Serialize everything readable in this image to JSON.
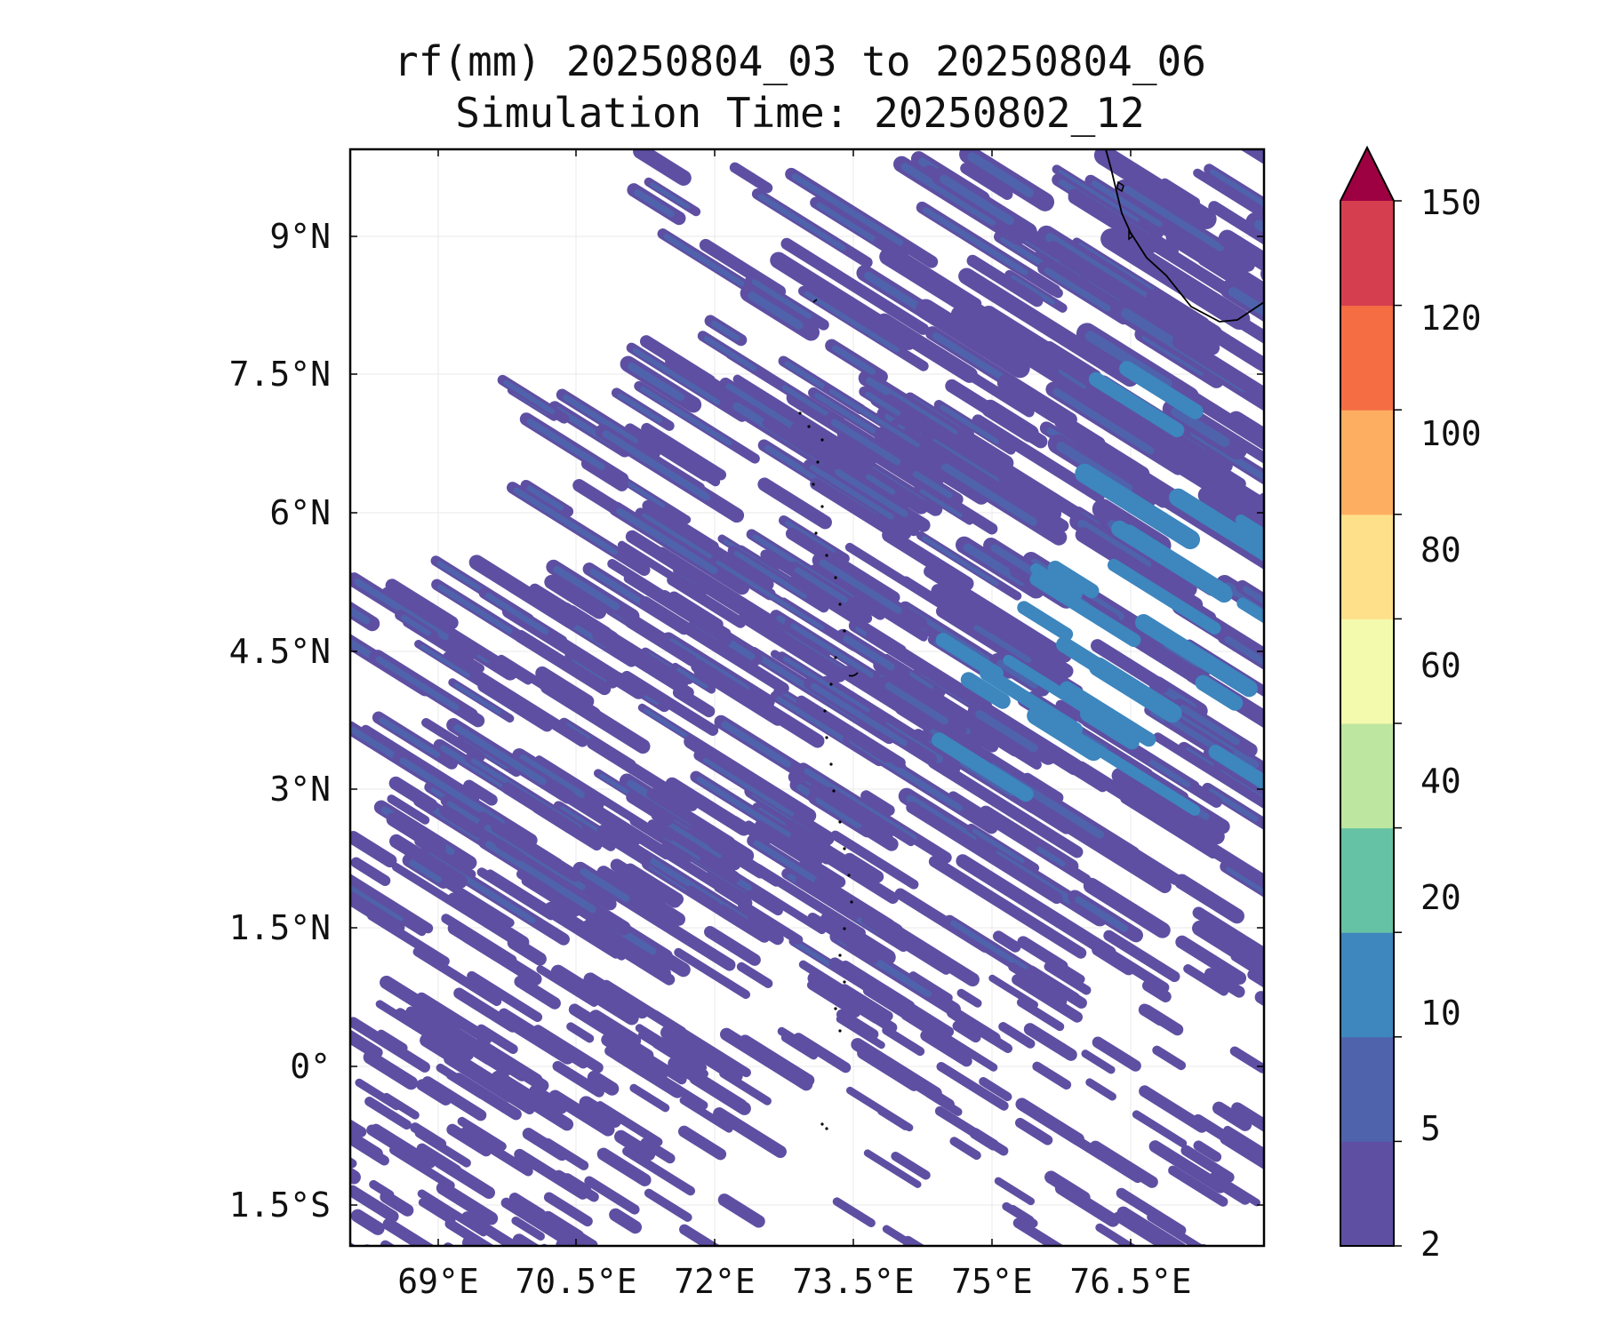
{
  "title": {
    "line1": "rf(mm) 20250804_03 to 20250804_06",
    "line2": "Simulation Time: 20250802_12"
  },
  "map": {
    "lat_labels": [
      "9°N",
      "7.5°N",
      "6°N",
      "4.5°N",
      "3°N",
      "1.5°N",
      "0°",
      "1.5°S"
    ],
    "lon_labels": [
      "69°E",
      "70.5°E",
      "72°E",
      "73.5°E",
      "75°E",
      "76.5°E"
    ],
    "grid": true
  },
  "colorbar": {
    "levels": [
      "2",
      "5",
      "10",
      "20",
      "40",
      "60",
      "80",
      "100",
      "120",
      "150"
    ],
    "colors": [
      "#5e4fa2",
      "#4f63ad",
      "#3d86be",
      "#66c2a5",
      "#bde6a0",
      "#f3faad",
      "#fee08b",
      "#fdae61",
      "#f46d43",
      "#d53e4f"
    ],
    "extend_color": "#9e0142",
    "extend": "max"
  }
}
